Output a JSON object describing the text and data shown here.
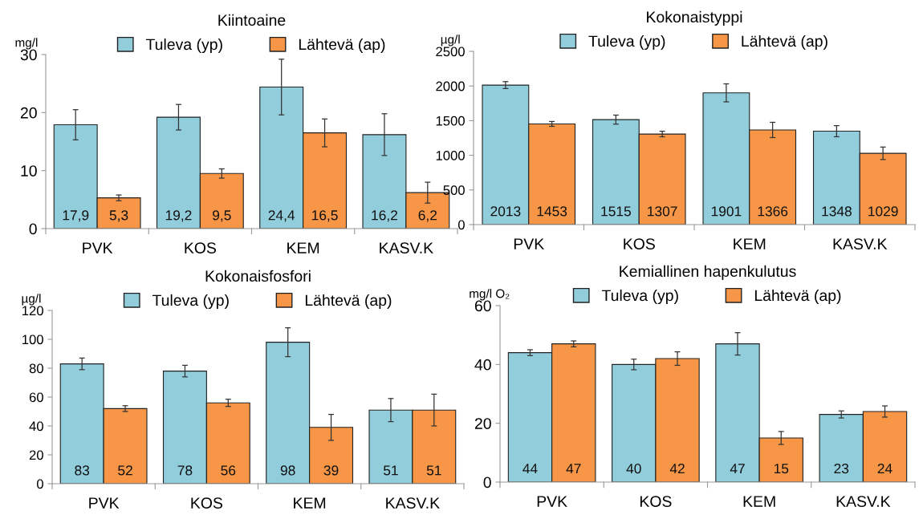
{
  "chart_data": [
    {
      "type": "bar",
      "title": "Kiintoaine",
      "ylabel": "mg/l",
      "categories": [
        "PVK",
        "KOS",
        "KEM",
        "KASV.K"
      ],
      "ylim": [
        0,
        30
      ],
      "yticks": [
        0,
        10,
        20,
        30
      ],
      "grid": false,
      "legend": "top",
      "series": [
        {
          "name": "Tuleva (yp)",
          "color": "#92cddc",
          "values": [
            17.9,
            19.2,
            24.4,
            16.2
          ],
          "errors": [
            2.6,
            2.2,
            4.8,
            3.6
          ],
          "value_labels": [
            "17,9",
            "19,2",
            "24,4",
            "16,2"
          ]
        },
        {
          "name": "Lähtevä (ap)",
          "color": "#f79646",
          "values": [
            5.3,
            9.5,
            16.5,
            6.2
          ],
          "errors": [
            0.5,
            0.8,
            2.4,
            1.8
          ],
          "value_labels": [
            "5,3",
            "9,5",
            "16,5",
            "6,2"
          ]
        }
      ]
    },
    {
      "type": "bar",
      "title": "Kokonaistyppi",
      "ylabel": "µg/l",
      "categories": [
        "PVK",
        "KOS",
        "KEM",
        "KASV.K"
      ],
      "ylim": [
        0,
        2500
      ],
      "yticks": [
        0,
        500,
        1000,
        1500,
        2000,
        2500
      ],
      "grid": false,
      "legend": "top",
      "series": [
        {
          "name": "Tuleva (yp)",
          "color": "#92cddc",
          "values": [
            2013,
            1515,
            1901,
            1348
          ],
          "errors": [
            50,
            65,
            130,
            80
          ],
          "value_labels": [
            "2013",
            "1515",
            "1901",
            "1348"
          ]
        },
        {
          "name": "Lähtevä (ap)",
          "color": "#f79646",
          "values": [
            1453,
            1307,
            1366,
            1029
          ],
          "errors": [
            35,
            40,
            110,
            90
          ],
          "value_labels": [
            "1453",
            "1307",
            "1366",
            "1029"
          ]
        }
      ]
    },
    {
      "type": "bar",
      "title": "Kokonaisfosfori",
      "ylabel": "µg/l",
      "categories": [
        "PVK",
        "KOS",
        "KEM",
        "KASV.K"
      ],
      "ylim": [
        0,
        120
      ],
      "yticks": [
        0,
        20,
        40,
        60,
        80,
        100,
        120
      ],
      "grid": false,
      "legend": "top",
      "series": [
        {
          "name": "Tuleva (yp)",
          "color": "#92cddc",
          "values": [
            83,
            78,
            98,
            51
          ],
          "errors": [
            4,
            4,
            10,
            8
          ],
          "value_labels": [
            "83",
            "78",
            "98",
            "51"
          ]
        },
        {
          "name": "Lähtevä (ap)",
          "color": "#f79646",
          "values": [
            52,
            56,
            39,
            51
          ],
          "errors": [
            2,
            2.5,
            9,
            11
          ],
          "value_labels": [
            "52",
            "56",
            "39",
            "51"
          ]
        }
      ]
    },
    {
      "type": "bar",
      "title": "Kemiallinen hapenkulutus",
      "ylabel": "mg/l O₂",
      "categories": [
        "PVK",
        "KOS",
        "KEM",
        "KASV.K"
      ],
      "ylim": [
        0,
        60
      ],
      "yticks": [
        0,
        20,
        40,
        60
      ],
      "grid": false,
      "legend": "top",
      "series": [
        {
          "name": "Tuleva (yp)",
          "color": "#92cddc",
          "values": [
            44,
            40,
            47,
            23
          ],
          "errors": [
            1,
            1.8,
            3.8,
            1.2
          ],
          "value_labels": [
            "44",
            "40",
            "47",
            "23"
          ]
        },
        {
          "name": "Lähtevä (ap)",
          "color": "#f79646",
          "values": [
            47,
            42,
            15,
            24
          ],
          "errors": [
            1,
            2.3,
            2.2,
            1.9
          ],
          "value_labels": [
            "47",
            "42",
            "15",
            "24"
          ]
        }
      ]
    }
  ]
}
